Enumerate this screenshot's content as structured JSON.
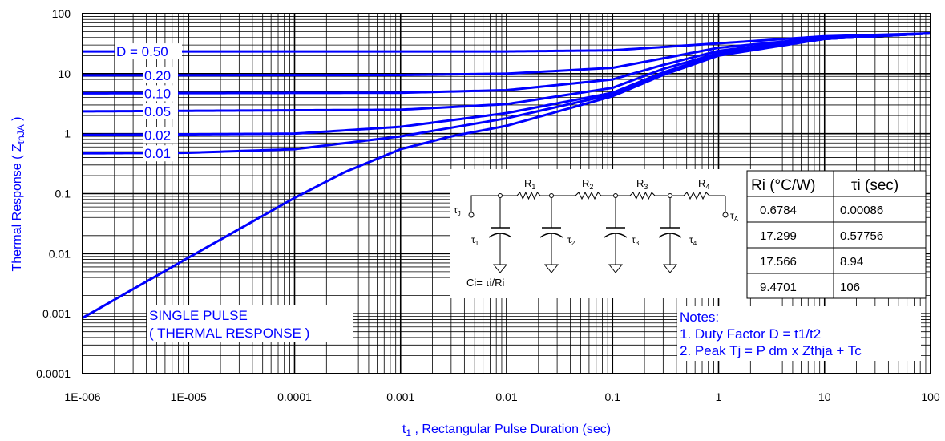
{
  "chart_data": {
    "type": "line",
    "x_scale": "log",
    "y_scale": "log",
    "xlim": [
      1e-06,
      100
    ],
    "ylim": [
      0.0001,
      100
    ],
    "grid": true,
    "xlabel_prefix": "t",
    "xlabel_sub": "1",
    "xlabel_rest": " , Rectangular Pulse Duration (sec)",
    "ylabel_main": "Thermal Response ( Z",
    "ylabel_sub": "thJA",
    "ylabel_end": " )",
    "x_tick_labels": [
      "1E-006",
      "1E-005",
      "0.0001",
      "0.001",
      "0.01",
      "0.1",
      "1",
      "10",
      "100"
    ],
    "x_ticks": [
      1e-06,
      1e-05,
      0.0001,
      0.001,
      0.01,
      0.1,
      1,
      10,
      100
    ],
    "y_tick_labels": [
      "0.0001",
      "0.001",
      "0.01",
      "0.1",
      "1",
      "10",
      "100"
    ],
    "y_ticks": [
      0.0001,
      0.001,
      0.01,
      0.1,
      1,
      10,
      100
    ],
    "line_color": "#0000FF",
    "series": [
      {
        "name": "D = 0.50",
        "x": [
          1e-06,
          0.001,
          0.01,
          0.1,
          1,
          10,
          100
        ],
        "y": [
          23.5,
          23.5,
          23.5,
          24.5,
          32,
          42,
          47
        ]
      },
      {
        "name": "0.20",
        "x": [
          1e-06,
          0.001,
          0.01,
          0.1,
          0.3,
          1,
          10,
          100
        ],
        "y": [
          9.4,
          9.5,
          10,
          12.5,
          18,
          27,
          40,
          47
        ]
      },
      {
        "name": "0.10",
        "x": [
          1e-06,
          0.001,
          0.01,
          0.1,
          0.3,
          1,
          10,
          100
        ],
        "y": [
          4.7,
          4.8,
          5.3,
          8,
          14,
          24,
          39,
          47
        ]
      },
      {
        "name": "0.05",
        "x": [
          1e-06,
          0.001,
          0.01,
          0.1,
          0.3,
          1,
          10,
          100
        ],
        "y": [
          2.35,
          2.5,
          3.1,
          5.8,
          12,
          22,
          38,
          47
        ]
      },
      {
        "name": "0.02",
        "x": [
          1e-06,
          0.0001,
          0.001,
          0.01,
          0.1,
          0.3,
          1,
          10,
          100
        ],
        "y": [
          0.95,
          1.0,
          1.3,
          2.2,
          4.8,
          10.5,
          21,
          38,
          47
        ]
      },
      {
        "name": "0.01",
        "x": [
          1e-06,
          1e-05,
          0.0001,
          0.001,
          0.01,
          0.1,
          0.3,
          1,
          10,
          100
        ],
        "y": [
          0.47,
          0.48,
          0.55,
          0.9,
          1.8,
          4.5,
          10,
          21,
          38,
          47
        ]
      },
      {
        "name": "SINGLE PULSE",
        "x": [
          1e-06,
          1e-05,
          0.0001,
          0.0003,
          0.001,
          0.003,
          0.01,
          0.1,
          0.3,
          1,
          10,
          100
        ],
        "y": [
          0.00085,
          0.0086,
          0.085,
          0.23,
          0.55,
          0.9,
          1.35,
          4.2,
          9.5,
          20,
          38,
          47
        ]
      }
    ],
    "line_labels": [
      "D = 0.50",
      "0.20",
      "0.10",
      "0.05",
      "0.02",
      "0.01"
    ],
    "single_pulse_label": [
      "SINGLE PULSE",
      "( THERMAL RESPONSE )"
    ],
    "notes": [
      "Notes:",
      "1. Duty Factor D = t1/t2",
      "2. Peak Tj = P dm x Zthja + Tc"
    ],
    "circuit": {
      "resistors": [
        "R",
        "R",
        "R",
        "R"
      ],
      "resistor_subs": [
        "1",
        "2",
        "3",
        "4"
      ],
      "tau_j": "τ",
      "tau_j_sub": "J",
      "tau_a": "τ",
      "tau_a_sub": "A",
      "caps": [
        "τ",
        "τ",
        "τ",
        "τ"
      ],
      "cap_subs": [
        "1",
        "2",
        "3",
        "4"
      ],
      "formula": "Ci= τi/Ri"
    },
    "table": {
      "headers": [
        "Ri (°C/W)",
        "τi (sec)"
      ],
      "rows": [
        [
          "0.6784",
          "0.00086"
        ],
        [
          "17.299",
          "0.57756"
        ],
        [
          "17.566",
          "8.94"
        ],
        [
          "9.4701",
          "106"
        ]
      ]
    }
  }
}
